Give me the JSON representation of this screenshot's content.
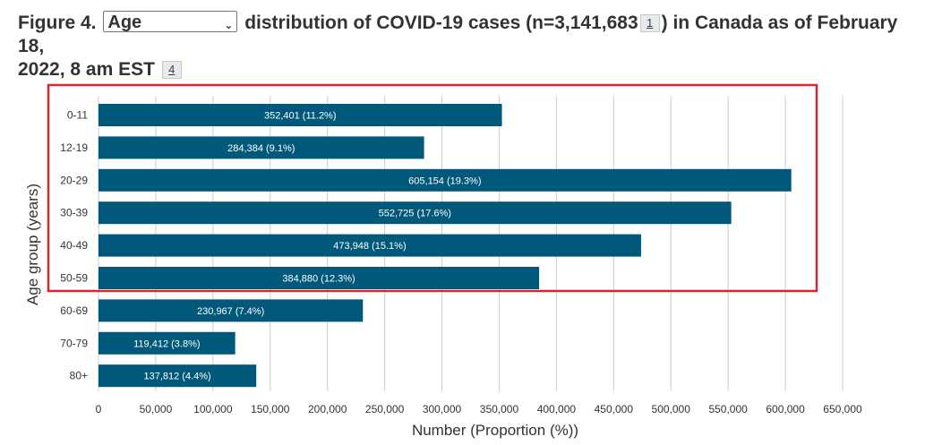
{
  "heading": {
    "prefix": "Figure 4.",
    "select_value": "Age",
    "part1": "distribution of COVID-19 cases (n=3,141,683",
    "fn1": "1",
    "part2": ") in Canada as of February 18,",
    "line2": "2022, 8 am EST",
    "fn2": "4"
  },
  "colors": {
    "bar": "#00587a",
    "highlight": "#d7262f",
    "grid": "#cccccc"
  },
  "chart_data": {
    "type": "bar",
    "orientation": "horizontal",
    "categories": [
      "0-11",
      "12-19",
      "20-29",
      "30-39",
      "40-49",
      "50-59",
      "60-69",
      "70-79",
      "80+"
    ],
    "values": [
      352401,
      284384,
      605154,
      552725,
      473948,
      384880,
      230967,
      119412,
      137812
    ],
    "data_labels": [
      "352,401 (11.2%)",
      "284,384 (9.1%)",
      "605,154 (19.3%)",
      "552,725 (17.6%)",
      "473,948 (15.1%)",
      "384,880 (12.3%)",
      "230,967 (7.4%)",
      "119,412 (3.8%)",
      "137,812 (4.4%)"
    ],
    "xlim": [
      0,
      650000
    ],
    "xticks": [
      "0",
      "50,000",
      "100,000",
      "150,000",
      "200,000",
      "250,000",
      "300,000",
      "350,000",
      "400,000",
      "450,000",
      "500,000",
      "550,000",
      "600,000",
      "650,000"
    ],
    "xlabel": "Number (Proportion (%))",
    "ylabel": "Age group (years)",
    "grid": true,
    "highlighted_categories": [
      "0-11",
      "12-19",
      "20-29",
      "30-39",
      "40-49",
      "50-59"
    ]
  }
}
